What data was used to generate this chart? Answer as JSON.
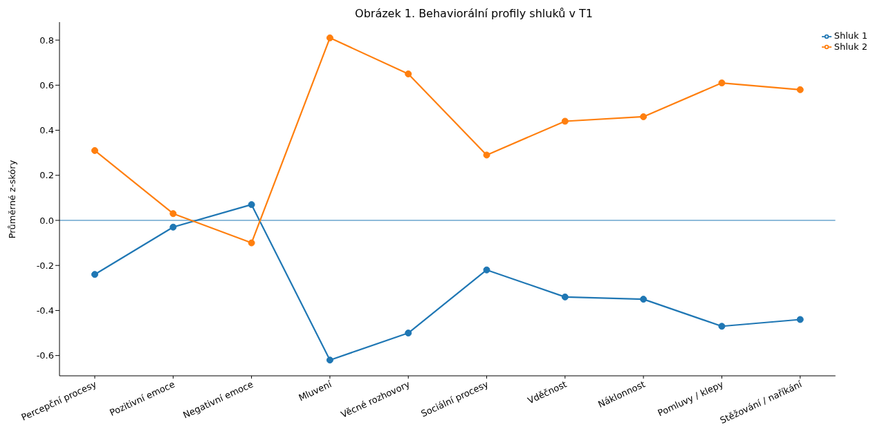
{
  "chart_data": {
    "type": "line",
    "title": "Obrázek 1. Behaviorální profily shluků v T1",
    "ylabel": "Průměrné z-skóry",
    "categories": [
      "Percepční procesy",
      "Pozitivní emoce",
      "Negativní emoce",
      "Mluvení",
      "Věcné rozhovory",
      "Sociální procesy",
      "Vděčnost",
      "Náklonnost",
      "Pomluvy / klepy",
      "Stěžování / naříkání"
    ],
    "series": [
      {
        "name": "Shluk 1",
        "color": "#1f77b4",
        "values": [
          -0.24,
          -0.03,
          0.07,
          -0.62,
          -0.5,
          -0.22,
          -0.34,
          -0.35,
          -0.47,
          -0.44
        ]
      },
      {
        "name": "Shluk 2",
        "color": "#ff7f0e",
        "values": [
          0.31,
          0.03,
          -0.1,
          0.81,
          0.65,
          0.29,
          0.44,
          0.46,
          0.61,
          0.58
        ]
      }
    ],
    "ylim": [
      -0.69,
      0.88
    ],
    "yticks": [
      -0.6,
      -0.4,
      -0.2,
      {
        "value": 0,
        "label": "0.0"
      },
      0.2,
      0.4,
      0.6,
      0.8
    ],
    "ref_lines": [
      {
        "axis": "y",
        "value": 0,
        "color": "#1f77b4",
        "line_style": "solid"
      }
    ],
    "grid": false,
    "legend": "top right",
    "marker": "circle",
    "line_style": "solid"
  }
}
